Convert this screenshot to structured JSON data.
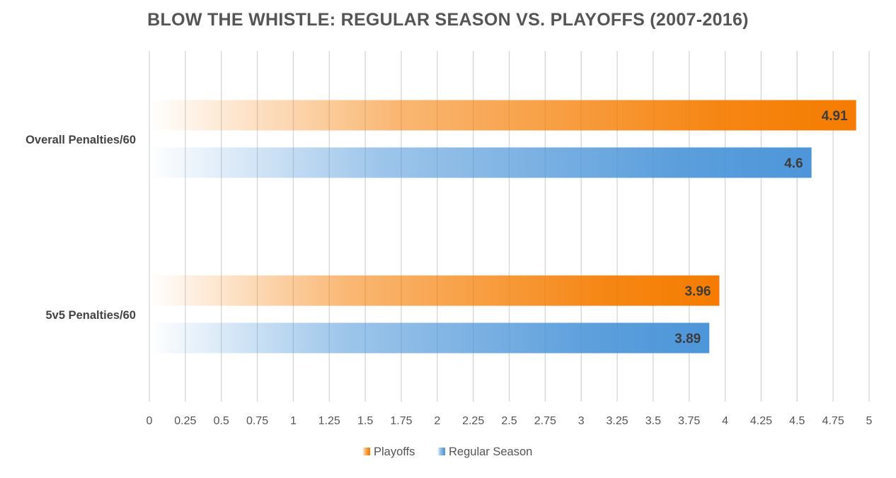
{
  "chart_data": {
    "type": "bar",
    "orientation": "horizontal",
    "title": "BLOW THE WHISTLE: REGULAR SEASON VS. PLAYOFFS (2007-2016)",
    "categories": [
      "Overall Penalties/60",
      "5v5 Penalties/60"
    ],
    "series": [
      {
        "name": "Playoffs",
        "color": "#f57c00",
        "values": [
          4.91,
          3.96
        ]
      },
      {
        "name": "Regular Season",
        "color": "#4d96d9",
        "values": [
          4.6,
          3.89
        ]
      }
    ],
    "data_labels": [
      [
        "4.91",
        "3.96"
      ],
      [
        "4.6",
        "3.89"
      ]
    ],
    "xlim": [
      0,
      5
    ],
    "x_ticks": [
      "0",
      "0.25",
      "0.5",
      "0.75",
      "1",
      "1.25",
      "1.5",
      "1.75",
      "2",
      "2.25",
      "2.5",
      "2.75",
      "3",
      "3.25",
      "3.5",
      "3.75",
      "4",
      "4.25",
      "4.5",
      "4.75",
      "5"
    ],
    "grid": true,
    "legend_position": "bottom",
    "fill_style": "gradient fading to white toward the axis"
  }
}
